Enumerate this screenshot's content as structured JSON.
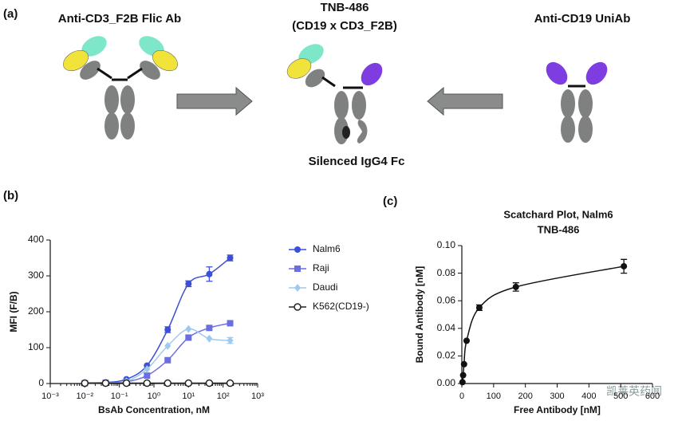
{
  "panel_a": {
    "label": "(a)",
    "left_title": "Anti-CD3_F2B Flic Ab",
    "center_title": [
      "TNB-486",
      "(CD19 x CD3_F2B)"
    ],
    "right_title": "Anti-CD19 UniAb",
    "center_caption": "Silenced IgG4 Fc"
  },
  "watermark": "凯莱英药闻",
  "chart_data": [
    {
      "type": "line",
      "label": "(b)",
      "x_label": "BsAb Concentration, nM",
      "y_label": "MFI (F/B)",
      "x_scale": "log",
      "xlim": [
        0.001,
        1000
      ],
      "xticks": [
        {
          "value": 0.001,
          "label": "10⁻³"
        },
        {
          "value": 0.01,
          "label": "10⁻²"
        },
        {
          "value": 0.1,
          "label": "10⁻¹"
        },
        {
          "value": 1,
          "label": "10⁰"
        },
        {
          "value": 10,
          "label": "10¹"
        },
        {
          "value": 100,
          "label": "10²"
        },
        {
          "value": 1000,
          "label": "10³"
        }
      ],
      "ylim": [
        0,
        400
      ],
      "yticks": [
        0,
        100,
        200,
        300,
        400
      ],
      "x": [
        0.01,
        0.04,
        0.16,
        0.63,
        2.5,
        10,
        40,
        160
      ],
      "series": [
        {
          "name": "Nalm6",
          "color": "#3b4fd8",
          "marker": "circle",
          "values": [
            2,
            3,
            12,
            50,
            150,
            278,
            305,
            350
          ],
          "errors": [
            null,
            null,
            null,
            null,
            8,
            8,
            20,
            8
          ]
        },
        {
          "name": "Raji",
          "color": "#6b6ee3",
          "marker": "square",
          "values": [
            1,
            2,
            5,
            22,
            65,
            128,
            155,
            168
          ],
          "errors": [
            null,
            null,
            null,
            null,
            null,
            null,
            null,
            null
          ]
        },
        {
          "name": "Daudi",
          "color": "#9fc9ef",
          "marker": "diamond",
          "values": [
            1,
            2,
            6,
            40,
            105,
            152,
            125,
            120
          ],
          "errors": [
            null,
            null,
            null,
            null,
            null,
            null,
            null,
            8
          ]
        },
        {
          "name": "K562(CD19-)",
          "color": "#222222",
          "marker": "open-circle",
          "values": [
            1,
            1,
            1,
            1,
            1,
            1,
            1,
            1
          ],
          "errors": [
            null,
            null,
            null,
            null,
            null,
            null,
            null,
            null
          ]
        }
      ]
    },
    {
      "type": "scatter",
      "label": "(c)",
      "title": [
        "Scatchard  Plot, Nalm6",
        "TNB-486"
      ],
      "x_label": "Free Antibody [nM]",
      "y_label": "Bound Antibody [nM]",
      "x_scale": "linear",
      "xlim": [
        0,
        600
      ],
      "xticks": [
        0,
        100,
        200,
        300,
        400,
        500,
        600
      ],
      "ylim": [
        0,
        0.1
      ],
      "yticks": [
        {
          "value": 0,
          "label": "0.00"
        },
        {
          "value": 0.02,
          "label": "0.02"
        },
        {
          "value": 0.04,
          "label": "0.04"
        },
        {
          "value": 0.06,
          "label": "0.06"
        },
        {
          "value": 0.08,
          "label": "0.08"
        },
        {
          "value": 0.1,
          "label": "0.10"
        }
      ],
      "x": [
        2,
        4,
        7,
        15,
        55,
        170,
        510
      ],
      "series": [
        {
          "color": "#111111",
          "marker": "circle",
          "values": [
            0.001,
            0.006,
            0.014,
            0.031,
            0.055,
            0.07,
            0.085
          ],
          "errors": [
            null,
            null,
            null,
            null,
            0.002,
            0.003,
            0.005
          ]
        }
      ]
    }
  ]
}
